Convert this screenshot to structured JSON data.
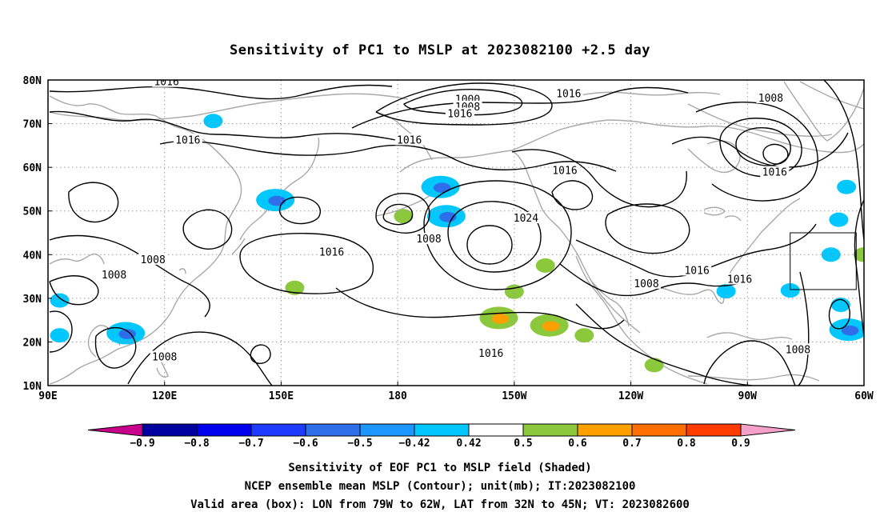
{
  "title": "Sensitivity of PC1 to MSLP at 2023082100 +2.5 day",
  "map": {
    "lon_range": [
      90,
      300
    ],
    "lat_range": [
      10,
      80
    ],
    "lon_ticks": [
      {
        "lon": 90,
        "label": "90E"
      },
      {
        "lon": 120,
        "label": "120E"
      },
      {
        "lon": 150,
        "label": "150E"
      },
      {
        "lon": 180,
        "label": "180"
      },
      {
        "lon": 210,
        "label": "150W"
      },
      {
        "lon": 240,
        "label": "120W"
      },
      {
        "lon": 270,
        "label": "90W"
      },
      {
        "lon": 300,
        "label": "60W"
      }
    ],
    "lat_ticks": [
      {
        "lat": 10,
        "label": "10N"
      },
      {
        "lat": 20,
        "label": "20N"
      },
      {
        "lat": 30,
        "label": "30N"
      },
      {
        "lat": 40,
        "label": "40N"
      },
      {
        "lat": 50,
        "label": "50N"
      },
      {
        "lat": 60,
        "label": "60N"
      },
      {
        "lat": 70,
        "label": "70N"
      },
      {
        "lat": 80,
        "label": "80N"
      }
    ],
    "grid": true,
    "valid_box": {
      "lon_min": 281,
      "lon_max": 298,
      "lat_min": 32,
      "lat_max": 45
    },
    "contour_labels": [
      {
        "text": "1016",
        "lon": 120.5,
        "lat": 79.5
      },
      {
        "text": "1000",
        "lon": 198,
        "lat": 75.5
      },
      {
        "text": "1008",
        "lon": 198,
        "lat": 73.8
      },
      {
        "text": "1016",
        "lon": 196,
        "lat": 72.2
      },
      {
        "text": "1016",
        "lon": 224,
        "lat": 76.8
      },
      {
        "text": "1008",
        "lon": 276,
        "lat": 75.8
      },
      {
        "text": "1016",
        "lon": 126,
        "lat": 66.2
      },
      {
        "text": "1016",
        "lon": 183,
        "lat": 66.2
      },
      {
        "text": "1016",
        "lon": 223,
        "lat": 59.2
      },
      {
        "text": "1016",
        "lon": 277,
        "lat": 58.8
      },
      {
        "text": "1024",
        "lon": 213,
        "lat": 48.3
      },
      {
        "text": "1008",
        "lon": 188,
        "lat": 43.5
      },
      {
        "text": "1016",
        "lon": 163,
        "lat": 40.5
      },
      {
        "text": "1008",
        "lon": 117,
        "lat": 38.8
      },
      {
        "text": "1008",
        "lon": 107,
        "lat": 35.3
      },
      {
        "text": "1016",
        "lon": 257,
        "lat": 36.3
      },
      {
        "text": "1016",
        "lon": 268,
        "lat": 34.3
      },
      {
        "text": "1008",
        "lon": 244,
        "lat": 33.3
      },
      {
        "text": "1016",
        "lon": 204,
        "lat": 17.3
      },
      {
        "text": "1008",
        "lon": 120,
        "lat": 16.5
      },
      {
        "text": "1008",
        "lon": 283,
        "lat": 18.2
      }
    ],
    "sensitivity_patches": [
      {
        "lon": 132.5,
        "lat": 70.6,
        "value": -0.5
      },
      {
        "lon": 148.5,
        "lat": 52.5,
        "value": -0.6
      },
      {
        "lon": 191,
        "lat": 55.5,
        "value": -0.6
      },
      {
        "lon": 192.5,
        "lat": 48.8,
        "value": -0.6
      },
      {
        "lon": 181.5,
        "lat": 48.8,
        "value": 0.5
      },
      {
        "lon": 153.5,
        "lat": 32.4,
        "value": 0.5
      },
      {
        "lon": 206,
        "lat": 25.5,
        "value": 0.6
      },
      {
        "lon": 219,
        "lat": 23.8,
        "value": 0.6
      },
      {
        "lon": 246,
        "lat": 14.7,
        "value": 0.5
      },
      {
        "lon": 228,
        "lat": 21.5,
        "value": 0.5
      },
      {
        "lon": 296,
        "lat": 22.8,
        "value": -0.6
      },
      {
        "lon": 294,
        "lat": 28.5,
        "value": -0.5
      },
      {
        "lon": 293.5,
        "lat": 48,
        "value": -0.5
      },
      {
        "lon": 295.5,
        "lat": 55.5,
        "value": -0.5
      },
      {
        "lon": 291.5,
        "lat": 40,
        "value": -0.5
      },
      {
        "lon": 110,
        "lat": 22,
        "value": -0.6
      },
      {
        "lon": 93,
        "lat": 29.5,
        "value": -0.5
      },
      {
        "lon": 93,
        "lat": 21.5,
        "value": -0.5
      },
      {
        "lon": 281,
        "lat": 31.8,
        "value": -0.5
      },
      {
        "lon": 264.5,
        "lat": 31.6,
        "value": -0.5
      },
      {
        "lon": 299.8,
        "lat": 40,
        "value": 0.5
      },
      {
        "lon": 210,
        "lat": 31.5,
        "value": 0.5
      },
      {
        "lon": 218,
        "lat": 37.5,
        "value": 0.5
      }
    ]
  },
  "colorbar": {
    "levels": [
      "−0.9",
      "−0.8",
      "−0.7",
      "−0.6",
      "−0.5",
      "−0.42",
      "0.42",
      "0.5",
      "0.6",
      "0.7",
      "0.8",
      "0.9"
    ],
    "colors": [
      "#0000a0",
      "#0000ee",
      "#1e3cff",
      "#2e6ee8",
      "#1e96ff",
      "#00c8ff",
      "#ffffff",
      "#8cc83c",
      "#ffa000",
      "#ff6e00",
      "#ff3c00",
      "#ff0000"
    ],
    "low_end_color": "#c8008c",
    "high_end_color": "#f4a0c8"
  },
  "footer": {
    "line1": "Sensitivity of EOF PC1 to MSLP field (Shaded)",
    "line2": "NCEP ensemble mean MSLP (Contour); unit(mb); IT:2023082100",
    "line3": "Valid area (box): LON from 79W to 62W, LAT from 32N to 45N; VT: 2023082600"
  }
}
